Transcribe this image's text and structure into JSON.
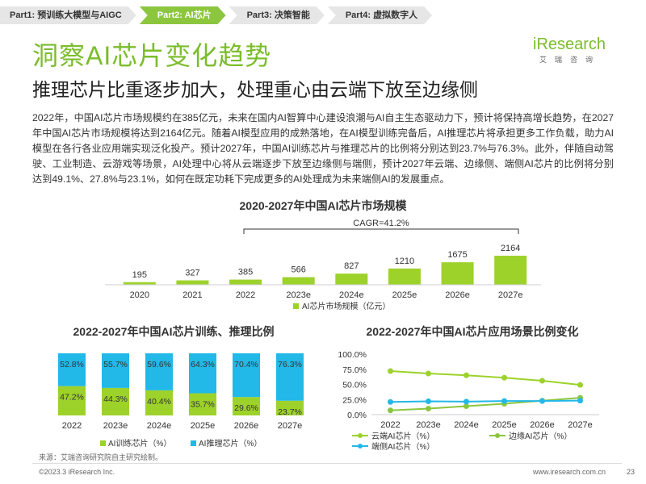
{
  "nav": {
    "tabs": [
      "Part1: 预训练大模型与AIGC",
      "Part2: AI芯片",
      "Part3: 决策智能",
      "Part4: 虚拟数字人"
    ],
    "active_index": 1,
    "active_color": "#8cc63f"
  },
  "header": {
    "title": "洞察AI芯片变化趋势",
    "subtitle": "推理芯片比重逐步加大，处理重心由云端下放至边缘侧"
  },
  "logo": {
    "brand": "iResearch",
    "sub": "艾瑞咨询"
  },
  "paragraph": "2022年，中国AI芯片市场规模约在385亿元，未来在国内AI智算中心建设浪潮与AI自主生态驱动力下，预计将保持高增长趋势，在2027年中国AI芯片市场规模将达到2164亿元。随着AI模型应用的成熟落地，在AI模型训练完备后，AI推理芯片将承担更多工作负载，助力AI模型在各行各业应用端实现泛化投产。预计2027年，中国AI训练芯片与推理芯片的比例将分别达到23.7%与76.3%。此外，伴随自动驾驶、工业制造、云游戏等场景，AI处理中心将从云端逐步下放至边缘侧与端侧，预计2027年云端、边缘侧、端侧AI芯片的比例将分别达到49.1%、27.8%与23.1%，如何在既定功耗下完成更多的AI处理成为未来端侧AI的发展重点。",
  "chart_data": [
    {
      "type": "bar",
      "title": "2020-2027年中国AI芯片市场规模",
      "categories": [
        "2020",
        "2021",
        "2022",
        "2023e",
        "2024e",
        "2025e",
        "2026e",
        "2027e"
      ],
      "values": [
        195,
        327,
        385,
        566,
        827,
        1210,
        1675,
        2164
      ],
      "legend": "AI芯片市场规模（亿元）",
      "annotation": "CAGR=41.2%",
      "color": "#9dd22b"
    },
    {
      "type": "bar",
      "stacked": true,
      "title": "2022-2027年中国AI芯片训练、推理比例",
      "categories": [
        "2022",
        "2023e",
        "2024e",
        "2025e",
        "2026e",
        "2027e"
      ],
      "series": [
        {
          "name": "AI训练芯片（%）",
          "values": [
            47.2,
            44.3,
            40.4,
            35.7,
            29.6,
            23.7
          ],
          "color": "#9dd22b"
        },
        {
          "name": "AI推理芯片（%）",
          "values": [
            52.8,
            55.7,
            59.6,
            64.3,
            70.4,
            76.3
          ],
          "color": "#22b8e8"
        }
      ]
    },
    {
      "type": "line",
      "title": "2022-2027年中国AI芯片应用场景比例变化",
      "categories": [
        "2022",
        "2023e",
        "2024e",
        "2025e",
        "2026e",
        "2027e"
      ],
      "ylim": [
        0,
        100
      ],
      "yticks": [
        "0.0%",
        "25.0%",
        "50.0%",
        "75.0%",
        "100.0%"
      ],
      "series": [
        {
          "name": "云端AI芯片（%）",
          "values": [
            72.0,
            68.0,
            65.0,
            61.0,
            56.0,
            49.1
          ],
          "color": "#9dd22b"
        },
        {
          "name": "边缘AI芯片（%）",
          "values": [
            7.0,
            10.0,
            14.0,
            18.0,
            23.0,
            27.8
          ],
          "color": "#8cc63f"
        },
        {
          "name": "端侧AI芯片（%）",
          "values": [
            21.0,
            22.0,
            21.5,
            22.5,
            22.5,
            23.1
          ],
          "color": "#22b8e8"
        }
      ]
    }
  ],
  "source": "来源：艾瑞咨询研究院自主研究绘制。",
  "footer": {
    "copyright": "©2023.3 iResearch Inc.",
    "url": "www.iresearch.com.cn",
    "page": "23"
  }
}
